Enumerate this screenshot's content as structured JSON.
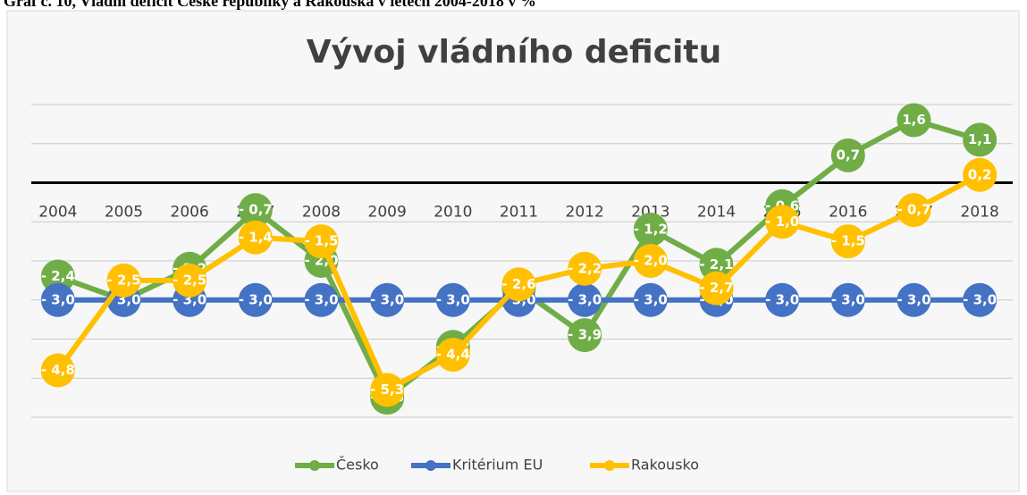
{
  "caption": "Graf č. 10, Vládní deficit České republiky a Rakouska v letech 2004-2018 v %",
  "chart_data": {
    "type": "line",
    "title": "Vývoj vládního deficitu",
    "categories": [
      "2004",
      "2005",
      "2006",
      "2007",
      "2008",
      "2009",
      "2010",
      "2011",
      "2012",
      "2013",
      "2014",
      "2015",
      "2016",
      "2017",
      "2018"
    ],
    "series": [
      {
        "name": "Česko",
        "color": "#70ad47",
        "values": [
          -2.4,
          -3.0,
          -2.2,
          -0.7,
          -2.0,
          -5.5,
          -4.2,
          -2.7,
          -3.9,
          -1.2,
          -2.1,
          -0.6,
          0.7,
          1.6,
          1.1
        ],
        "value_labels": [
          "- 2,4",
          "- 3,0",
          "- 2,2",
          "- 0,7",
          "- 2,0",
          "- 5,5",
          "- 4,2",
          "- 2,7",
          "- 3,9",
          "- 1,2",
          "- 2,1",
          "- 0,6",
          "0,7",
          "1,6",
          "1,1"
        ]
      },
      {
        "name": "Kritérium EU",
        "color": "#4472c4",
        "values": [
          -3.0,
          -3.0,
          -3.0,
          -3.0,
          -3.0,
          -3.0,
          -3.0,
          -3.0,
          -3.0,
          -3.0,
          -3.0,
          -3.0,
          -3.0,
          -3.0,
          -3.0
        ],
        "value_labels": [
          "- 3,0",
          "- 3,0",
          "- 3,0",
          "- 3,0",
          "- 3,0",
          "- 3,0",
          "- 3,0",
          "- 3,0",
          "- 3,0",
          "- 3,0",
          "- 3,0",
          "- 3,0",
          "- 3,0",
          "- 3,0",
          "- 3,0"
        ]
      },
      {
        "name": "Rakousko",
        "color": "#ffc000",
        "values": [
          -4.8,
          -2.5,
          -2.5,
          -1.4,
          -1.5,
          -5.3,
          -4.4,
          -2.6,
          -2.2,
          -2.0,
          -2.7,
          -1.0,
          -1.5,
          -0.7,
          0.2
        ],
        "value_labels": [
          "- 4,8",
          "- 2,5",
          "- 2,5",
          "- 1,4",
          "- 1,5",
          "- 5,3",
          "- 4,4",
          "- 2,6",
          "- 2,2",
          "- 2,0",
          "- 2,7",
          "- 1,0",
          "- 1,5",
          "- 0,7",
          "0,2"
        ]
      }
    ],
    "ylim": [
      -6,
      2
    ],
    "yticks": [
      -6,
      -5,
      -4,
      -3,
      -2,
      -1,
      0,
      1,
      2
    ],
    "grid": true,
    "legend": "bottom"
  }
}
